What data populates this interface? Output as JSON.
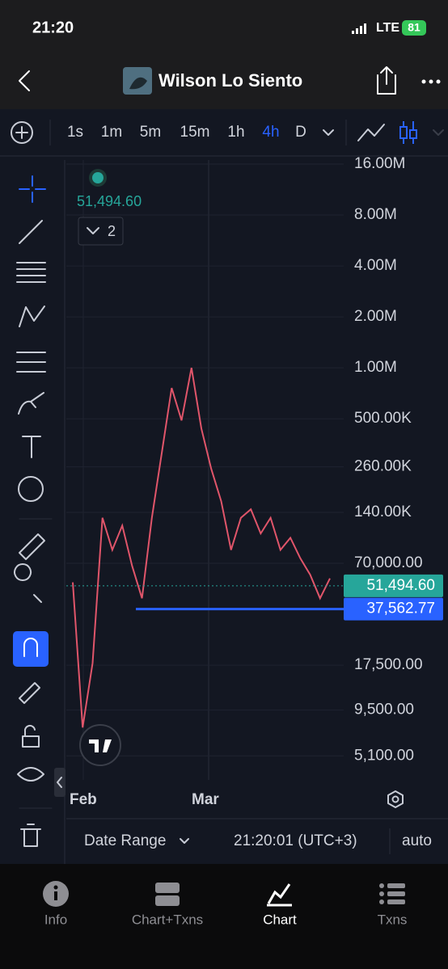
{
  "status_bar": {
    "time": "21:20",
    "network": "LTE",
    "battery": "81"
  },
  "header": {
    "title": "Wilson Lo Siento"
  },
  "toolbar": {
    "intervals": [
      "1s",
      "1m",
      "5m",
      "15m",
      "1h",
      "4h",
      "D"
    ],
    "active_interval": "4h",
    "active_color": "#2962ff"
  },
  "legend": {
    "price": "51,494.60",
    "indicators": "2"
  },
  "chart_data": {
    "type": "line",
    "y_scale": "log",
    "grid": true,
    "ylim": [
      3800,
      16900000
    ],
    "yticks": [
      {
        "value": 16000000,
        "label": "16.00M"
      },
      {
        "value": 8000000,
        "label": "8.00M"
      },
      {
        "value": 4000000,
        "label": "4.00M"
      },
      {
        "value": 2000000,
        "label": "2.00M"
      },
      {
        "value": 1000000,
        "label": "1.00M"
      },
      {
        "value": 500000,
        "label": "500.00K"
      },
      {
        "value": 260000,
        "label": "260.00K"
      },
      {
        "value": 140000,
        "label": "140.00K"
      },
      {
        "value": 70000,
        "label": "70,000.00"
      },
      {
        "value": 17500,
        "label": "17,500.00"
      },
      {
        "value": 9500,
        "label": "9,500.00"
      },
      {
        "value": 5100,
        "label": "5,100.00"
      }
    ],
    "x_labels": [
      "Feb",
      "Mar"
    ],
    "series": [
      {
        "color": "#e0556a",
        "values": [
          54000,
          7500,
          18000,
          130000,
          84000,
          117000,
          67500,
          43500,
          130000,
          315000,
          760000,
          489000,
          1000000,
          438000,
          253000,
          163000,
          84000,
          130000,
          146000,
          105000,
          130000,
          84000,
          99000,
          75000,
          60000,
          43500,
          57000
        ]
      }
    ],
    "price_lines": [
      {
        "value": 51494.6,
        "label": "51,494.60",
        "color": "#26a69a"
      },
      {
        "value": 37562.77,
        "label": "37,562.77",
        "color": "#2962ff"
      }
    ]
  },
  "footer": {
    "date_range": "Date Range",
    "time": "21:20:01 (UTC+3)",
    "scale": "auto"
  },
  "tabs": [
    "Info",
    "Chart+Txns",
    "Chart",
    "Txns"
  ],
  "active_tab": "Chart"
}
